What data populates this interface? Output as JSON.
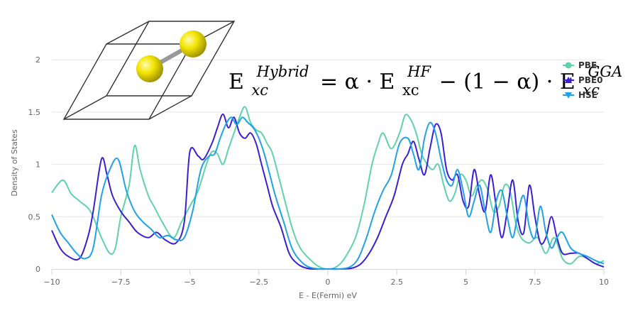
{
  "chart_data": {
    "type": "line",
    "title": "",
    "xlabel": "E - E(Fermi) eV",
    "ylabel": "Density of States",
    "xlim": [
      -10,
      10
    ],
    "ylim": [
      0,
      2.3
    ],
    "x_ticks": [
      "−10",
      "−7.5",
      "−5",
      "−2.5",
      "0",
      "2.5",
      "5",
      "7.5",
      "10"
    ],
    "x_tick_values": [
      -10,
      -7.5,
      -5,
      -2.5,
      0,
      2.5,
      5,
      7.5,
      10
    ],
    "y_ticks": [
      "0",
      "0.5",
      "1",
      "1.5",
      "2"
    ],
    "y_tick_values": [
      0,
      0.5,
      1,
      1.5,
      2
    ],
    "grid": "horizontal",
    "legend_position": "top-right",
    "annotation": {
      "base": "E",
      "sub": "xc",
      "sup": "Hybrid",
      "rhs": "= α · E",
      "rhs_sub": "xc",
      "rhs_sup": "HF",
      "middle": " − (1 − α) · ",
      "gga_base": "E",
      "gga_sub": "xc",
      "gga_sup": "GGA"
    },
    "series": [
      {
        "name": "PBE",
        "color": "#5fd3a8",
        "marker": "circle",
        "x": [
          -10,
          -9.6,
          -9.3,
          -9.0,
          -8.6,
          -8.2,
          -7.9,
          -7.7,
          -7.5,
          -7.2,
          -7.0,
          -6.8,
          -6.5,
          -6.3,
          -6.0,
          -5.6,
          -5.3,
          -5.0,
          -4.7,
          -4.4,
          -4.2,
          -4.0,
          -3.8,
          -3.6,
          -3.4,
          -3.2,
          -3.0,
          -2.8,
          -2.6,
          -2.4,
          -2.2,
          -2.0,
          -1.7,
          -1.3,
          -1.0,
          -0.6,
          -0.3,
          0,
          0.3,
          0.6,
          1.0,
          1.3,
          1.6,
          1.8,
          2.0,
          2.3,
          2.6,
          2.8,
          3.0,
          3.2,
          3.4,
          3.6,
          3.8,
          4.0,
          4.2,
          4.4,
          4.6,
          4.8,
          5.0,
          5.2,
          5.4,
          5.6,
          5.8,
          6.0,
          6.2,
          6.4,
          6.6,
          6.8,
          7.0,
          7.3,
          7.6,
          7.9,
          8.2,
          8.5,
          8.8,
          9.1,
          9.4,
          9.7,
          10
        ],
        "y": [
          0.73,
          0.85,
          0.72,
          0.65,
          0.55,
          0.3,
          0.15,
          0.2,
          0.5,
          0.8,
          1.18,
          0.95,
          0.7,
          0.6,
          0.45,
          0.3,
          0.45,
          0.6,
          0.75,
          1.0,
          1.12,
          1.1,
          1.0,
          1.15,
          1.3,
          1.45,
          1.55,
          1.4,
          1.33,
          1.3,
          1.2,
          1.1,
          0.8,
          0.4,
          0.2,
          0.08,
          0.02,
          0.0,
          0.02,
          0.1,
          0.3,
          0.6,
          1.0,
          1.18,
          1.3,
          1.15,
          1.3,
          1.47,
          1.43,
          1.3,
          1.1,
          1.0,
          0.95,
          1.0,
          0.8,
          0.65,
          0.72,
          0.9,
          0.85,
          0.7,
          0.8,
          0.85,
          0.75,
          0.55,
          0.6,
          0.8,
          0.75,
          0.45,
          0.3,
          0.25,
          0.3,
          0.15,
          0.3,
          0.1,
          0.05,
          0.12,
          0.1,
          0.05,
          0.08
        ]
      },
      {
        "name": "PBE0",
        "color": "#3a1fd4",
        "marker": "triangle",
        "x": [
          -10,
          -9.7,
          -9.4,
          -9.0,
          -8.7,
          -8.5,
          -8.2,
          -8.0,
          -7.8,
          -7.5,
          -7.2,
          -6.9,
          -6.5,
          -6.2,
          -5.9,
          -5.5,
          -5.2,
          -5.0,
          -4.7,
          -4.5,
          -4.2,
          -4.0,
          -3.8,
          -3.6,
          -3.4,
          -3.2,
          -3.0,
          -2.8,
          -2.6,
          -2.4,
          -2.2,
          -2.0,
          -1.7,
          -1.4,
          -1.1,
          -0.8,
          -0.5,
          0,
          0.5,
          0.9,
          1.2,
          1.5,
          1.8,
          2.1,
          2.4,
          2.7,
          2.9,
          3.1,
          3.3,
          3.5,
          3.7,
          3.9,
          4.1,
          4.3,
          4.5,
          4.7,
          4.9,
          5.1,
          5.3,
          5.5,
          5.7,
          5.9,
          6.1,
          6.3,
          6.5,
          6.7,
          6.9,
          7.1,
          7.3,
          7.5,
          7.7,
          7.9,
          8.1,
          8.3,
          8.5,
          8.8,
          9.1,
          9.4,
          9.7,
          10
        ],
        "y": [
          0.37,
          0.2,
          0.12,
          0.1,
          0.3,
          0.55,
          1.05,
          0.9,
          0.7,
          0.55,
          0.45,
          0.35,
          0.3,
          0.35,
          0.28,
          0.25,
          0.45,
          1.12,
          1.08,
          1.05,
          1.2,
          1.35,
          1.48,
          1.35,
          1.45,
          1.3,
          1.25,
          1.3,
          1.2,
          1.0,
          0.8,
          0.6,
          0.4,
          0.15,
          0.05,
          0.01,
          0.0,
          0.0,
          0.0,
          0.01,
          0.05,
          0.15,
          0.3,
          0.5,
          0.7,
          1.0,
          1.1,
          1.22,
          1.05,
          0.9,
          1.15,
          1.38,
          1.3,
          0.95,
          0.85,
          0.9,
          0.65,
          0.6,
          0.95,
          0.7,
          0.55,
          0.9,
          0.6,
          0.3,
          0.55,
          0.85,
          0.45,
          0.35,
          0.8,
          0.5,
          0.25,
          0.3,
          0.5,
          0.3,
          0.15,
          0.15,
          0.15,
          0.1,
          0.05,
          0.02
        ]
      },
      {
        "name": "HSE",
        "color": "#1fa2e8",
        "marker": "triangle-down",
        "x": [
          -10,
          -9.7,
          -9.4,
          -9.1,
          -8.8,
          -8.5,
          -8.2,
          -7.9,
          -7.6,
          -7.3,
          -7.0,
          -6.7,
          -6.4,
          -6.1,
          -5.8,
          -5.5,
          -5.2,
          -4.9,
          -4.6,
          -4.3,
          -4.1,
          -3.9,
          -3.7,
          -3.5,
          -3.3,
          -3.1,
          -2.9,
          -2.7,
          -2.5,
          -2.3,
          -2.1,
          -1.9,
          -1.6,
          -1.3,
          -1.0,
          -0.7,
          -0.3,
          0,
          0.4,
          0.8,
          1.1,
          1.4,
          1.7,
          2.0,
          2.3,
          2.6,
          2.9,
          3.1,
          3.3,
          3.5,
          3.7,
          3.9,
          4.1,
          4.3,
          4.5,
          4.7,
          4.9,
          5.1,
          5.3,
          5.5,
          5.7,
          5.9,
          6.1,
          6.3,
          6.5,
          6.7,
          6.9,
          7.1,
          7.3,
          7.5,
          7.7,
          7.9,
          8.1,
          8.3,
          8.5,
          8.8,
          9.1,
          9.4,
          9.7,
          10
        ],
        "y": [
          0.52,
          0.35,
          0.25,
          0.15,
          0.1,
          0.2,
          0.7,
          0.95,
          1.05,
          0.75,
          0.55,
          0.45,
          0.38,
          0.3,
          0.32,
          0.28,
          0.3,
          0.55,
          0.95,
          1.08,
          1.1,
          1.25,
          1.38,
          1.45,
          1.38,
          1.45,
          1.4,
          1.35,
          1.25,
          1.1,
          0.9,
          0.7,
          0.45,
          0.2,
          0.08,
          0.02,
          0.0,
          0.0,
          0.0,
          0.02,
          0.1,
          0.3,
          0.55,
          0.75,
          0.9,
          1.2,
          1.25,
          1.1,
          0.95,
          1.25,
          1.4,
          1.3,
          1.05,
          0.85,
          0.8,
          0.95,
          0.75,
          0.5,
          0.65,
          0.8,
          0.55,
          0.35,
          0.65,
          0.75,
          0.5,
          0.3,
          0.55,
          0.7,
          0.4,
          0.3,
          0.6,
          0.35,
          0.2,
          0.3,
          0.35,
          0.2,
          0.15,
          0.12,
          0.08,
          0.05
        ]
      }
    ]
  }
}
